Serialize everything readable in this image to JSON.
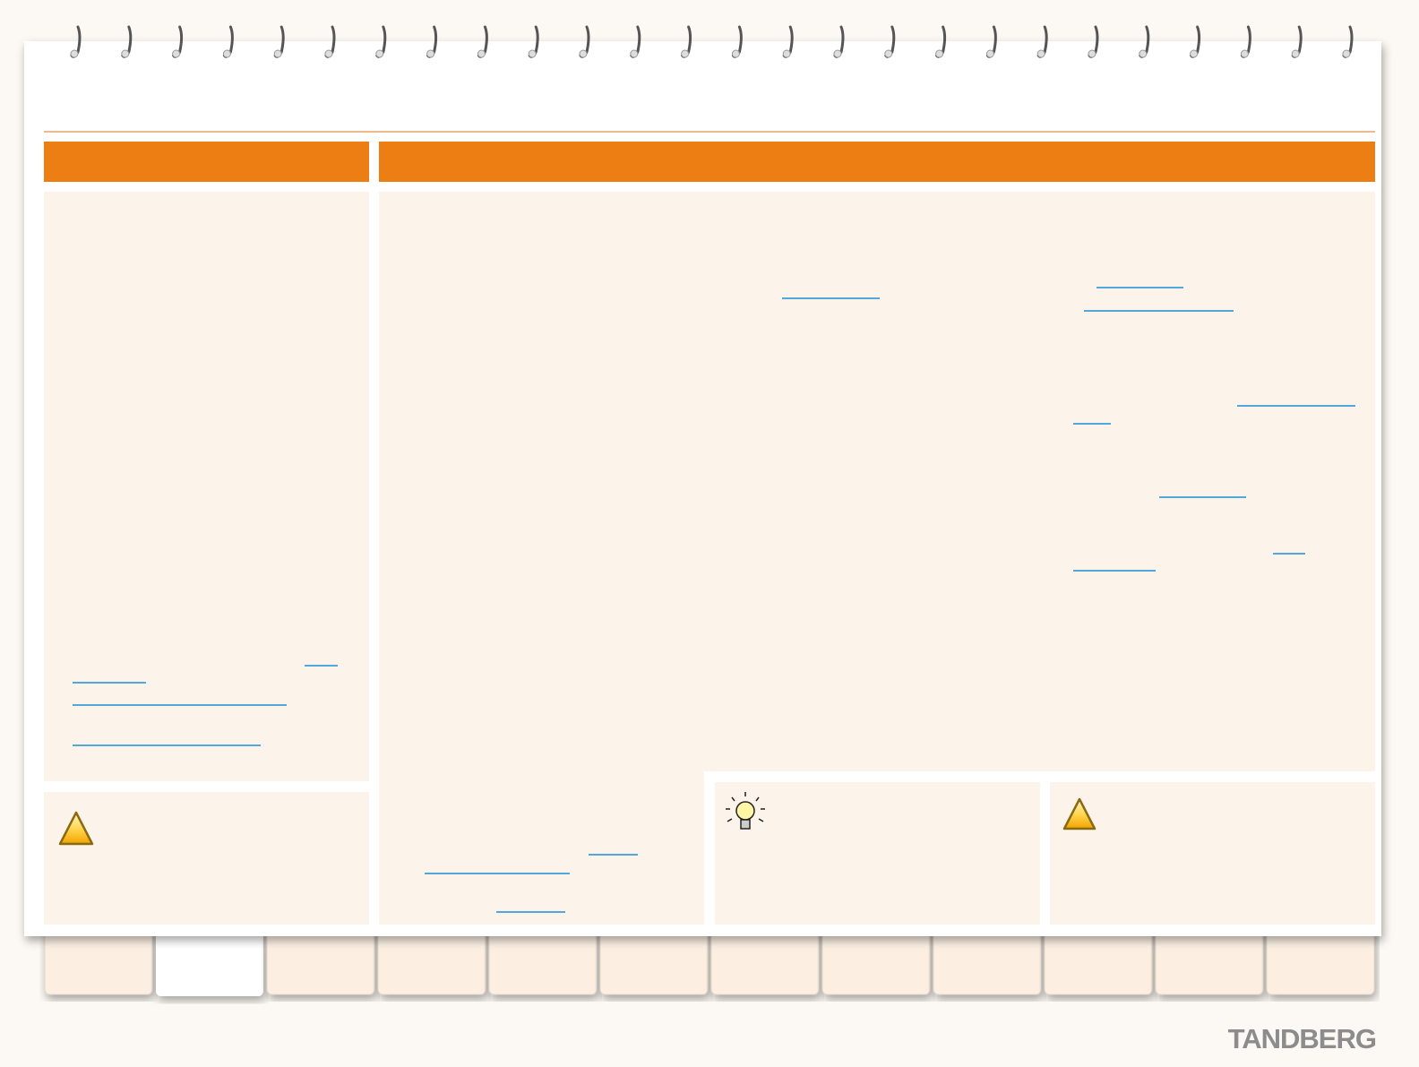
{
  "logo": "TANDBERG"
}
